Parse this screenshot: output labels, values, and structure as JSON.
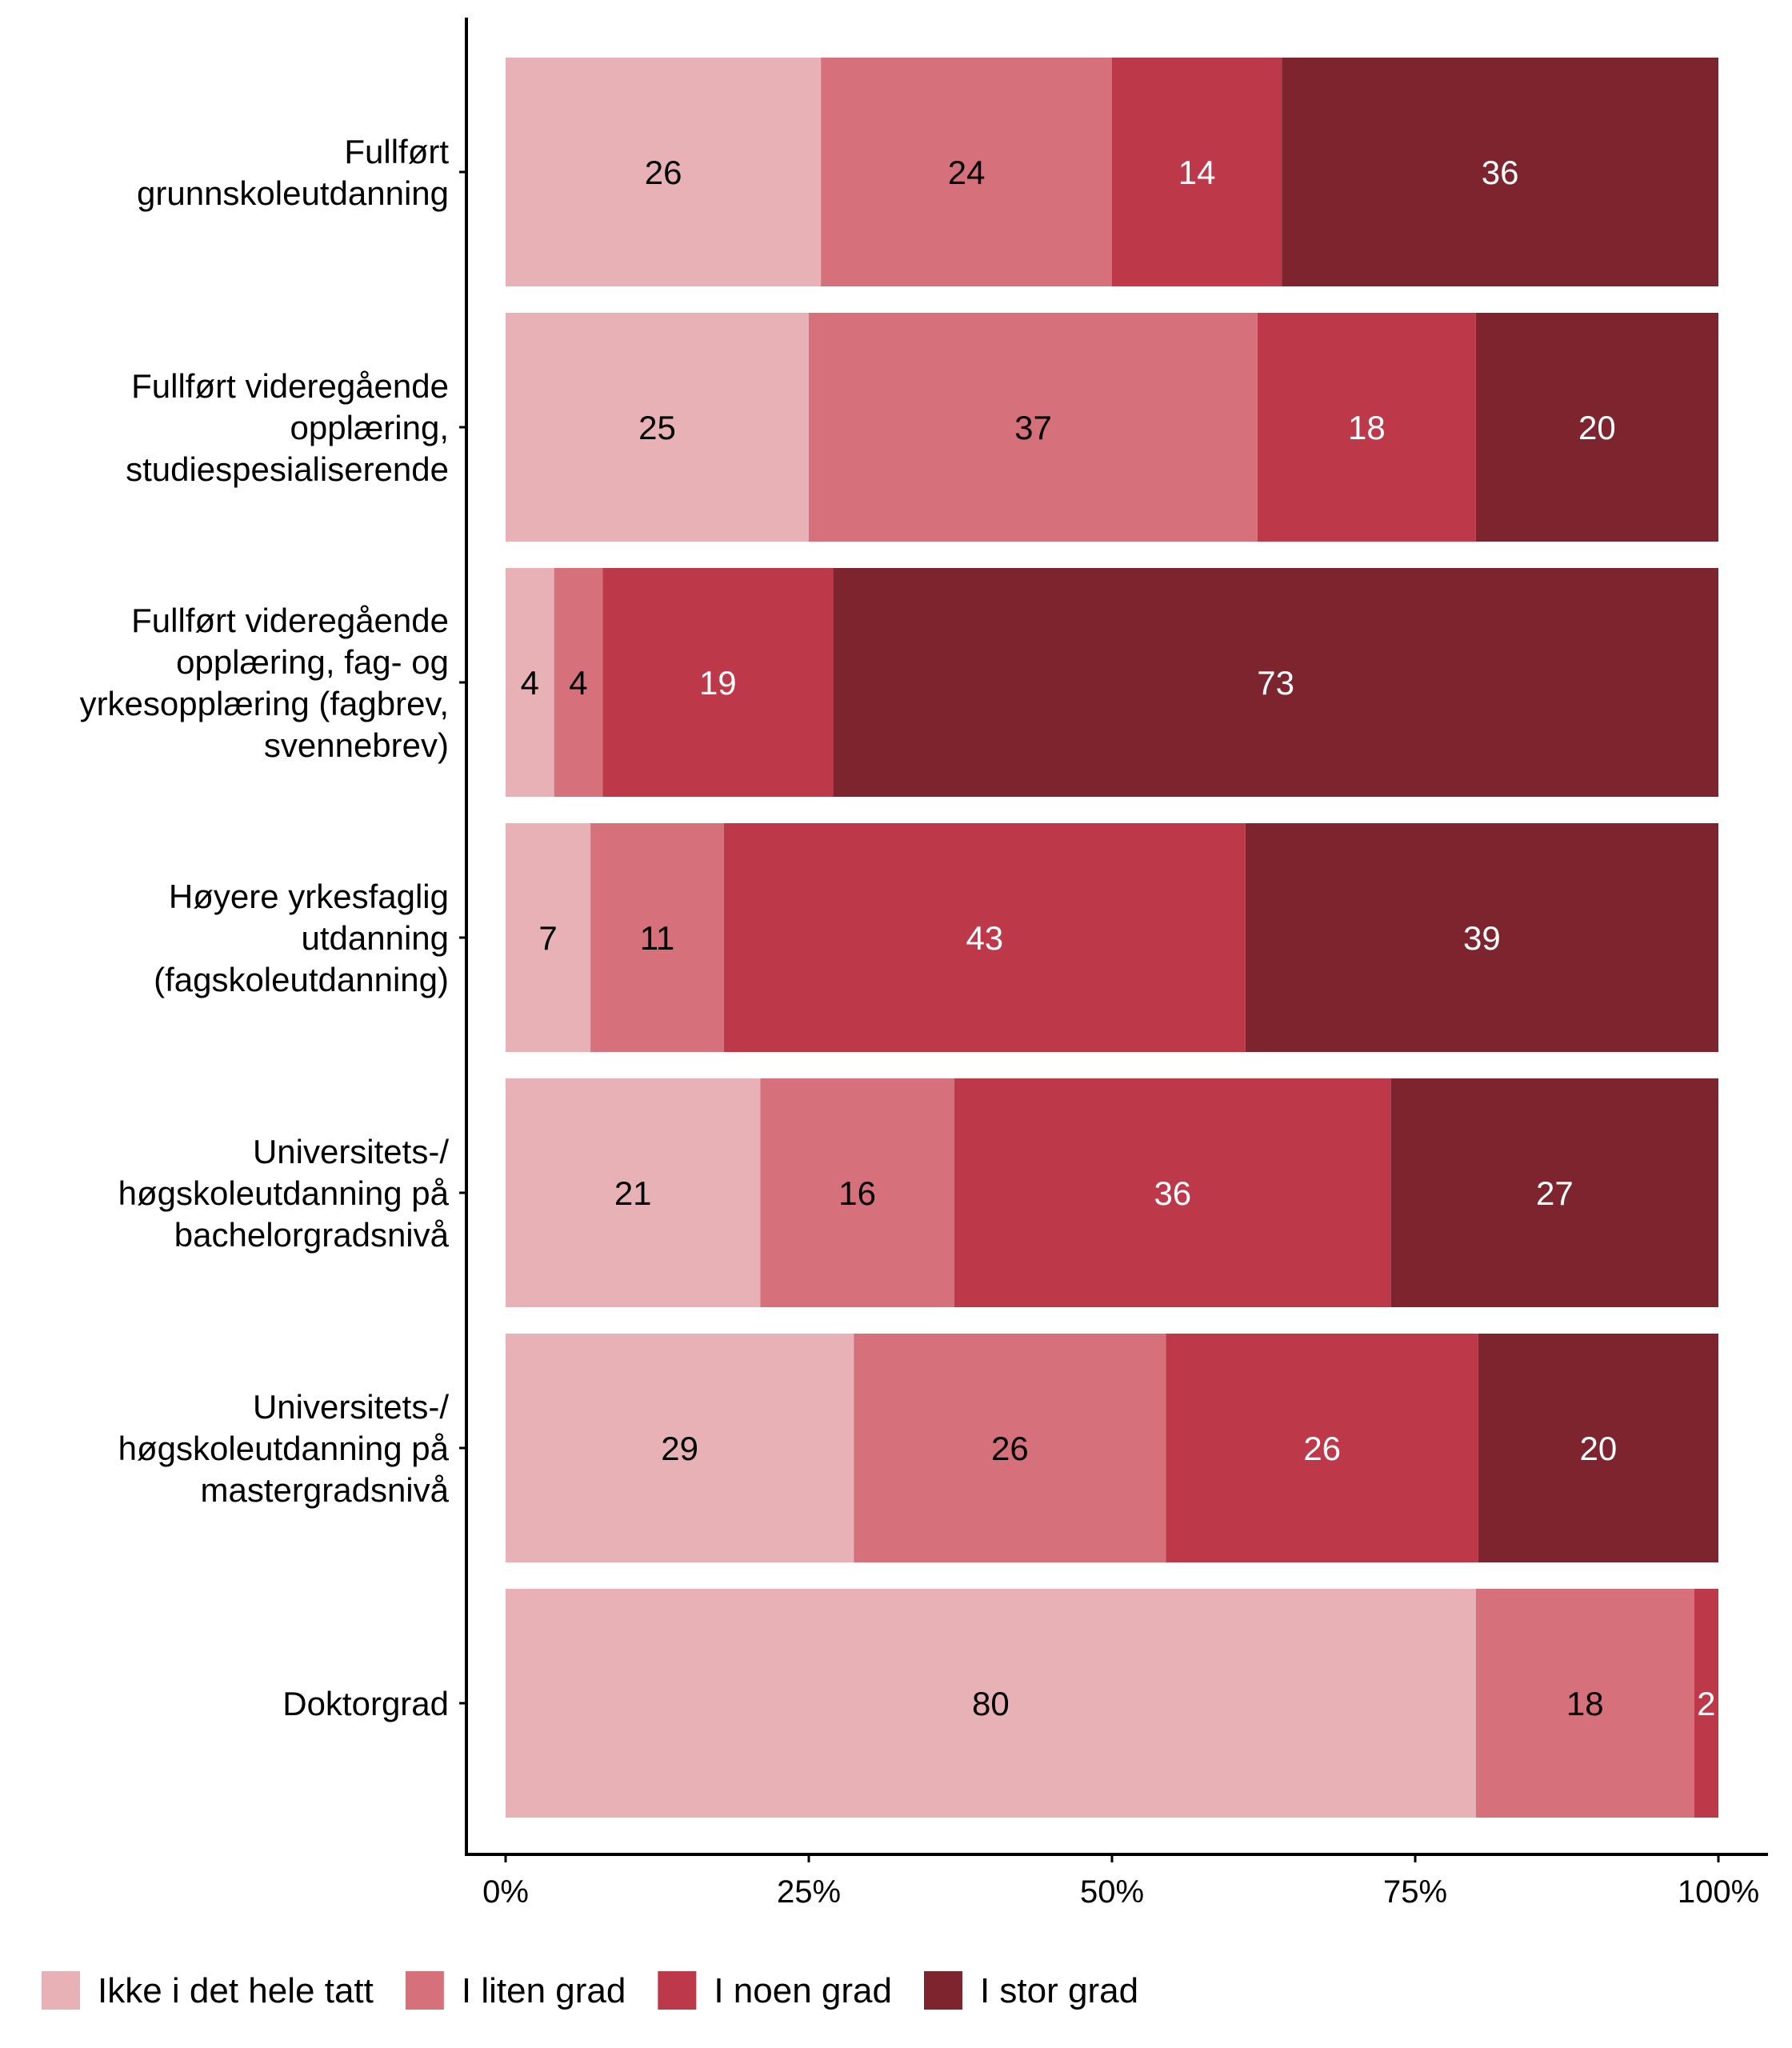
{
  "chart_data": {
    "type": "bar",
    "orientation": "horizontal",
    "stacked": true,
    "percent_scale": true,
    "categories": [
      [
        "Fullført",
        "grunnskoleutdanning"
      ],
      [
        "Fullført videregående",
        "opplæring,",
        "studiespesialiserende"
      ],
      [
        "Fullført videregående",
        "opplæring, fag- og",
        "yrkesopplæring (fagbrev,",
        "svennebrev)"
      ],
      [
        "Høyere yrkesfaglig",
        "utdanning",
        "(fagskoleutdanning)"
      ],
      [
        "Universitets-/",
        "høgskoleutdanning på",
        "bachelorgradsnivå"
      ],
      [
        "Universitets-/",
        "høgskoleutdanning på",
        "mastergradsnivå"
      ],
      [
        "Doktorgrad"
      ]
    ],
    "series": [
      {
        "name": "Ikke i det hele tatt",
        "color": "#E8B1B6",
        "label_color": "#000000",
        "values": [
          26,
          25,
          4,
          7,
          21,
          29,
          80
        ]
      },
      {
        "name": "I liten grad",
        "color": "#D6707B",
        "label_color": "#000000",
        "values": [
          24,
          37,
          4,
          11,
          16,
          26,
          18
        ]
      },
      {
        "name": "I noen grad",
        "color": "#BD3849",
        "label_color": "#ffffff",
        "values": [
          14,
          18,
          19,
          43,
          36,
          26,
          2
        ]
      },
      {
        "name": "I stor grad",
        "color": "#7D242F",
        "label_color": "#ffffff",
        "values": [
          36,
          20,
          73,
          39,
          27,
          20,
          0
        ]
      }
    ],
    "data_labels": [
      [
        "26",
        "24",
        "14",
        "36"
      ],
      [
        "25",
        "37",
        "18",
        "20"
      ],
      [
        "4",
        "4",
        "19",
        "73"
      ],
      [
        "7",
        "11",
        "43",
        "39"
      ],
      [
        "21",
        "16",
        "36",
        "27"
      ],
      [
        "29",
        "26",
        "26",
        "20"
      ],
      [
        "80",
        "18",
        "2",
        ""
      ]
    ],
    "x_ticks": [
      "0%",
      "25%",
      "50%",
      "75%",
      "100%"
    ],
    "xlim": [
      0,
      100
    ],
    "xlabel": "",
    "ylabel": "",
    "title": "",
    "grid": false,
    "legend": {
      "position": "bottom"
    }
  }
}
